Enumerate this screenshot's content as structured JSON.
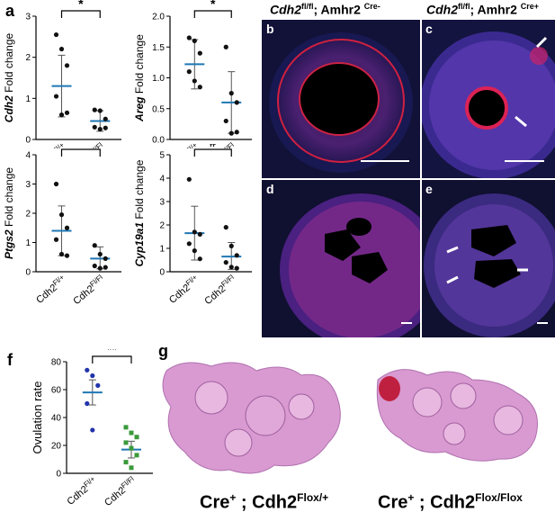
{
  "panels": {
    "a": "a",
    "b": "b",
    "c": "c",
    "d": "d",
    "e": "e",
    "f": "f",
    "g": "g"
  },
  "headers": {
    "left": {
      "gene": "Cdh2",
      "sup": "fl/fl",
      "rest": "; Amhr2 ",
      "cre": "Cre-"
    },
    "right": {
      "gene": "Cdh2",
      "sup": "fl/fl",
      "rest": "; Amhr2 ",
      "cre": "Cre+"
    }
  },
  "histology_captions": {
    "left": {
      "pre": "Cre",
      "pre_sup": "+",
      "mid": " ; Cdh2",
      "sup": "Flox/+"
    },
    "right": {
      "pre": "Cre",
      "pre_sup": "+",
      "mid": " ; Cdh2",
      "sup": "Flox/Flox"
    }
  },
  "chart_data": [
    {
      "type": "scatter",
      "id": "cdh2",
      "ylabel_gene": "Cdh2",
      "ylabel_suffix": " Fold change",
      "ylim": [
        0,
        3
      ],
      "yticks": [
        0,
        1,
        2,
        3
      ],
      "categories": [
        "Cdh2Fl/+",
        "Cdh2Fl/Fl"
      ],
      "significance": "*",
      "groups": [
        {
          "mean": 1.3,
          "sd_low": 0.55,
          "sd_high": 2.05,
          "points": [
            2.55,
            2.2,
            1.8,
            1.05,
            0.6,
            0.65
          ]
        },
        {
          "mean": 0.45,
          "sd_low": 0.2,
          "sd_high": 0.7,
          "points": [
            0.72,
            0.7,
            0.5,
            0.3,
            0.25,
            0.28
          ]
        }
      ]
    },
    {
      "type": "scatter",
      "id": "areg",
      "ylabel_gene": "Areg",
      "ylabel_suffix": " Fold change",
      "ylim": [
        0,
        2.0
      ],
      "yticks": [
        0.0,
        0.5,
        1.0,
        1.5,
        2.0
      ],
      "categories": [
        "Cdh2Fl/+",
        "Cdh2Fl/Fl"
      ],
      "significance": "*",
      "groups": [
        {
          "mean": 1.22,
          "sd_low": 0.82,
          "sd_high": 1.62,
          "points": [
            1.65,
            1.6,
            1.4,
            1.1,
            0.95,
            0.85
          ]
        },
        {
          "mean": 0.6,
          "sd_low": 0.1,
          "sd_high": 1.1,
          "points": [
            1.5,
            0.75,
            0.6,
            0.3,
            0.1,
            0.12
          ]
        }
      ]
    },
    {
      "type": "scatter",
      "id": "ptgs2",
      "ylabel_gene": "Ptgs2",
      "ylabel_suffix": " Fold change",
      "ylim": [
        0,
        4
      ],
      "yticks": [
        0,
        1,
        2,
        3,
        4
      ],
      "categories": [
        "Cdh2Fl/+",
        "Cdh2Fl/Fl"
      ],
      "significance": "*",
      "groups": [
        {
          "mean": 1.4,
          "sd_low": 0.55,
          "sd_high": 2.25,
          "points": [
            3.0,
            1.95,
            1.5,
            1.1,
            0.6,
            0.55
          ]
        },
        {
          "mean": 0.45,
          "sd_low": 0.1,
          "sd_high": 0.85,
          "points": [
            0.9,
            0.6,
            0.45,
            0.2,
            0.12,
            0.15
          ]
        }
      ]
    },
    {
      "type": "scatter",
      "id": "cyp19a1",
      "ylabel_gene": "Cyp19a1",
      "ylabel_suffix": " Fold change",
      "ylim": [
        0,
        5
      ],
      "yticks": [
        0,
        1,
        2,
        3,
        4,
        5
      ],
      "categories": [
        "Cdh2Fl/+",
        "Cdh2Fl/Fl"
      ],
      "significance": "#",
      "groups": [
        {
          "mean": 1.65,
          "sd_low": 0.5,
          "sd_high": 2.8,
          "points": [
            3.95,
            1.7,
            1.6,
            1.2,
            0.9,
            0.55
          ]
        },
        {
          "mean": 0.65,
          "sd_low": 0.1,
          "sd_high": 1.25,
          "points": [
            1.9,
            1.1,
            0.7,
            0.4,
            0.2,
            0.15
          ]
        }
      ]
    },
    {
      "type": "scatter",
      "id": "ovulation",
      "ylabel": "Ovulation rate",
      "ylim": [
        0,
        80
      ],
      "yticks": [
        0,
        20,
        40,
        60,
        80
      ],
      "categories": [
        "Cdh2Fl/+",
        "Cdh2Fl/Fl"
      ],
      "significance": "**",
      "groups": [
        {
          "color": "#2233aa",
          "mean": 58,
          "sd_low": 49,
          "sd_high": 67,
          "points": [
            74,
            70,
            63,
            50,
            31
          ]
        },
        {
          "color": "#3a9a3a",
          "mean": 17,
          "sd_low": 11,
          "sd_high": 23,
          "points": [
            33,
            29,
            26,
            22,
            18,
            13,
            8,
            4
          ]
        }
      ]
    }
  ],
  "category_labels": {
    "base": "Cdh2",
    "het": "Fl/+",
    "ko": "Fl/Fl"
  },
  "colors": {
    "mean_line": "#1f77b4",
    "err": "#555555",
    "point": "#111111"
  }
}
